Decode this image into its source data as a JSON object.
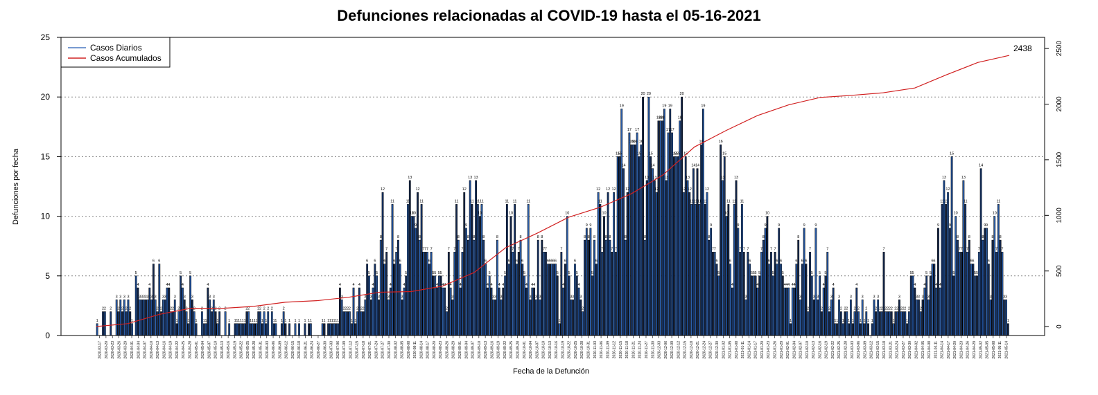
{
  "chart_data": {
    "type": "bar",
    "title": "Defunciones relacionadas al COVID-19 hasta el 05-16-2021",
    "xlabel": "Fecha de la Defunción",
    "ylabel": "Defunciones por fecha",
    "ylim": [
      0,
      25
    ],
    "y_ticks": [
      0,
      5,
      10,
      15,
      20,
      25
    ],
    "y2lim": [
      -80,
      2600
    ],
    "y2_ticks": [
      0,
      500,
      1000,
      1500,
      2000,
      2500
    ],
    "grid": "horizontal dotted",
    "legend": "top-left",
    "x_start": "2020-03-17",
    "x_end": "2021-05-16",
    "series": [
      {
        "name": "Casos Diarios",
        "color": "#1c3f7a",
        "values": [
          1,
          0,
          0,
          2,
          2,
          0,
          0,
          2,
          0,
          0,
          3,
          2,
          3,
          2,
          3,
          2,
          3,
          2,
          1,
          0,
          5,
          4,
          3,
          3,
          3,
          3,
          3,
          4,
          3,
          6,
          3,
          2,
          6,
          2,
          3,
          3,
          4,
          4,
          2,
          2,
          3,
          1,
          2,
          5,
          4,
          3,
          2,
          1,
          5,
          3,
          2,
          1,
          0,
          0,
          2,
          1,
          1,
          4,
          3,
          2,
          3,
          2,
          1,
          2,
          0,
          0,
          2,
          0,
          1,
          0,
          0,
          1,
          1,
          1,
          1,
          1,
          1,
          2,
          2,
          1,
          1,
          1,
          1,
          2,
          2,
          1,
          2,
          1,
          2,
          0,
          2,
          1,
          1,
          0,
          0,
          1,
          2,
          1,
          0,
          1,
          0,
          0,
          1,
          0,
          1,
          0,
          0,
          1,
          0,
          1,
          1,
          0,
          0,
          0,
          0,
          0,
          1,
          1,
          0,
          1,
          1,
          1,
          1,
          1,
          1,
          4,
          3,
          2,
          2,
          2,
          2,
          1,
          4,
          1,
          2,
          4,
          2,
          2,
          3,
          6,
          5,
          3,
          4,
          6,
          5,
          3,
          8,
          12,
          6,
          7,
          3,
          4,
          11,
          6,
          7,
          8,
          6,
          3,
          4,
          5,
          11,
          13,
          10,
          10,
          9,
          12,
          8,
          11,
          7,
          7,
          7,
          6,
          7,
          5,
          5,
          4,
          5,
          5,
          4,
          4,
          2,
          7,
          4,
          3,
          7,
          11,
          8,
          4,
          7,
          12,
          9,
          8,
          13,
          11,
          8,
          13,
          11,
          10,
          11,
          8,
          6,
          4,
          5,
          4,
          3,
          3,
          8,
          4,
          3,
          4,
          5,
          11,
          6,
          10,
          7,
          11,
          6,
          7,
          8,
          6,
          5,
          4,
          11,
          3,
          4,
          4,
          3,
          8,
          3,
          8,
          7,
          7,
          6,
          6,
          6,
          6,
          6,
          5,
          1,
          7,
          4,
          6,
          10,
          5,
          3,
          3,
          6,
          5,
          4,
          3,
          2,
          8,
          9,
          8,
          9,
          5,
          8,
          6,
          12,
          11,
          7,
          10,
          8,
          12,
          8,
          7,
          12,
          7,
          15,
          15,
          19,
          14,
          8,
          12,
          17,
          16,
          16,
          16,
          17,
          15,
          16,
          20,
          8,
          13,
          20,
          15,
          14,
          13,
          12,
          18,
          18,
          18,
          19,
          13,
          17,
          19,
          17,
          15,
          15,
          15,
          18,
          20,
          12,
          15,
          13,
          12,
          11,
          14,
          11,
          14,
          11,
          16,
          19,
          11,
          12,
          8,
          9,
          7,
          7,
          6,
          5,
          16,
          13,
          15,
          10,
          11,
          6,
          4,
          11,
          13,
          9,
          7,
          11,
          7,
          3,
          7,
          6,
          5,
          5,
          5,
          4,
          5,
          7,
          8,
          9,
          10,
          6,
          7,
          5,
          7,
          6,
          9,
          6,
          5,
          4,
          4,
          4,
          1,
          4,
          4,
          6,
          8,
          3,
          6,
          9,
          6,
          2,
          7,
          5,
          3,
          9,
          3,
          5,
          2,
          4,
          5,
          7,
          2,
          3,
          4,
          1,
          1,
          3,
          2,
          1,
          2,
          2,
          1,
          3,
          1,
          2,
          4,
          2,
          1,
          3,
          1,
          2,
          1,
          0,
          1,
          3,
          2,
          3,
          2,
          2,
          7,
          2,
          2,
          2,
          2,
          1,
          2,
          2,
          3,
          2,
          2,
          2,
          1,
          2,
          5,
          5,
          4,
          3,
          3,
          2,
          3,
          4,
          5,
          3,
          5,
          6,
          6,
          4,
          9,
          4,
          11,
          13,
          11,
          12,
          9,
          15,
          5,
          10,
          8,
          7,
          7,
          13,
          11,
          7,
          8,
          6,
          6,
          5,
          5,
          7,
          14,
          8,
          9,
          9,
          6,
          3,
          8,
          10,
          7,
          11,
          8,
          7,
          3,
          3,
          1
        ]
      },
      {
        "name": "Casos Acumulados",
        "color": "#d12020",
        "values": [
          1,
          27,
          110,
          165,
          164,
          182,
          219,
          233,
          263,
          309,
          315,
          364,
          486,
          709,
          839,
          983,
          1072,
          1195,
          1363,
          1615,
          1762,
          1897,
          1994,
          2060,
          2079,
          2102,
          2145,
          2263,
          2374,
          2438
        ],
        "last_label": "2438"
      }
    ],
    "bar_labels_visible": true,
    "x_tick_labels": [
      "2020-03-17",
      "2020-03-20",
      "2020-03-23",
      "2020-03-26",
      "2020-03-29",
      "2020-04-01",
      "2020-04-04",
      "2020-04-07",
      "2020-04-10",
      "2020-04-13",
      "2020-04-16",
      "2020-04-19",
      "2020-04-22",
      "2020-04-25",
      "2020-04-28",
      "2020-05-01",
      "2020-05-04",
      "2020-05-07",
      "2020-05-10",
      "2020-05-13",
      "2020-05-16",
      "2020-05-19",
      "2020-05-22",
      "2020-05-25",
      "2020-05-28",
      "2020-05-31",
      "2020-06-03",
      "2020-06-06",
      "2020-06-09",
      "2020-06-12",
      "2020-06-15",
      "2020-06-18",
      "2020-06-21",
      "2020-06-24",
      "2020-06-27",
      "2020-06-30",
      "2020-07-03",
      "2020-07-06",
      "2020-07-09",
      "2020-07-12",
      "2020-07-15",
      "2020-07-18",
      "2020-07-21",
      "2020-07-24",
      "2020-07-27",
      "2020-07-30",
      "2020-08-02",
      "2020-08-05",
      "2020-08-08",
      "2020-08-11",
      "2020-08-14",
      "2020-08-17",
      "2020-08-20",
      "2020-08-23",
      "2020-08-26",
      "2020-08-29",
      "2020-09-01",
      "2020-09-04",
      "2020-09-07",
      "2020-09-10",
      "2020-09-13",
      "2020-09-16",
      "2020-09-19",
      "2020-09-22",
      "2020-09-25",
      "2020-09-28",
      "2020-10-01",
      "2020-10-04",
      "2020-10-07",
      "2020-10-10",
      "2020-10-13",
      "2020-10-16",
      "2020-10-19",
      "2020-10-22",
      "2020-10-25",
      "2020-10-28",
      "2020-10-31",
      "2020-11-03",
      "2020-11-06",
      "2020-11-09",
      "2020-11-12",
      "2020-11-15",
      "2020-11-18",
      "2020-11-21",
      "2020-11-24",
      "2020-11-27",
      "2020-11-30",
      "2020-12-03",
      "2020-12-06",
      "2020-12-09",
      "2020-12-12",
      "2020-12-15",
      "2020-12-18",
      "2020-12-21",
      "2020-12-24",
      "2020-12-27",
      "2020-12-30",
      "2021-01-02",
      "2021-01-05",
      "2021-01-08",
      "2021-01-11",
      "2021-01-14",
      "2021-01-17",
      "2021-01-20",
      "2021-01-23",
      "2021-01-26",
      "2021-01-29",
      "2021-02-01",
      "2021-02-04",
      "2021-02-07",
      "2021-02-10",
      "2021-02-13",
      "2021-02-16",
      "2021-02-19",
      "2021-02-22",
      "2021-02-25",
      "2021-02-28",
      "2021-03-03",
      "2021-03-06",
      "2021-03-09",
      "2021-03-12",
      "2021-03-15",
      "2021-03-18",
      "2021-03-21",
      "2021-03-24",
      "2021-03-27",
      "2021-03-30",
      "2021-04-02",
      "2021-04-05",
      "2021-04-08",
      "2021-04-11",
      "2021-04-14",
      "2021-04-17",
      "2021-04-20",
      "2021-04-23",
      "2021-04-26",
      "2021-04-29",
      "2021-05-02",
      "2021-05-05",
      "2021-05-08",
      "2021-05-11",
      "2021-05-14"
    ]
  }
}
